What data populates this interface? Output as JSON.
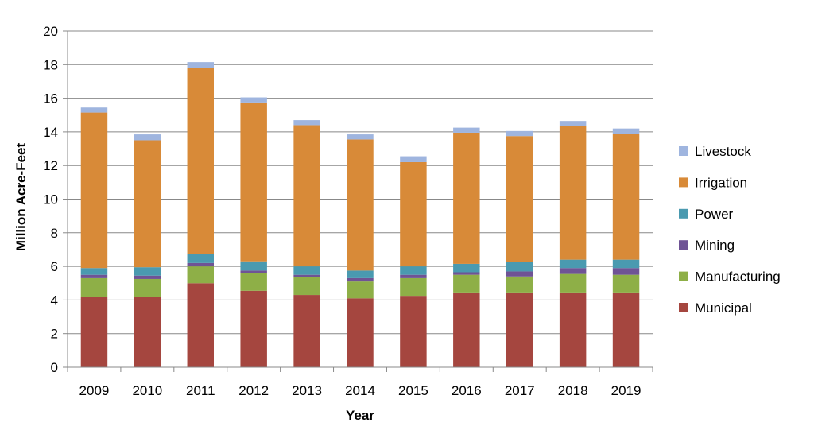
{
  "chart_data": {
    "type": "bar",
    "stacked": true,
    "title": "",
    "xlabel": "Year",
    "ylabel": "Million Acre-Feet",
    "ylim": [
      0,
      20
    ],
    "yticks": [
      "0",
      "2",
      "4",
      "6",
      "8",
      "10",
      "12",
      "14",
      "16",
      "18",
      "20"
    ],
    "grid": "horizontal",
    "legend_position": "right",
    "categories": [
      "2009",
      "2010",
      "2011",
      "2012",
      "2013",
      "2014",
      "2015",
      "2016",
      "2017",
      "2018",
      "2019"
    ],
    "series": [
      {
        "name": "Municipal",
        "color": "#a5463f",
        "values": [
          4.2,
          4.2,
          5.0,
          4.55,
          4.3,
          4.1,
          4.25,
          4.45,
          4.45,
          4.45,
          4.45
        ]
      },
      {
        "name": "Manufacturing",
        "color": "#8eaf47",
        "values": [
          1.1,
          1.05,
          1.0,
          1.05,
          1.05,
          1.0,
          1.05,
          1.05,
          0.95,
          1.1,
          1.05
        ]
      },
      {
        "name": "Mining",
        "color": "#6f5395",
        "values": [
          0.2,
          0.2,
          0.2,
          0.15,
          0.15,
          0.2,
          0.2,
          0.15,
          0.3,
          0.35,
          0.4
        ]
      },
      {
        "name": "Power",
        "color": "#4a9ab0",
        "values": [
          0.4,
          0.5,
          0.55,
          0.55,
          0.5,
          0.45,
          0.5,
          0.5,
          0.55,
          0.5,
          0.5
        ]
      },
      {
        "name": "Irrigation",
        "color": "#d88a38",
        "values": [
          9.25,
          7.55,
          11.05,
          9.45,
          8.4,
          7.8,
          6.2,
          7.8,
          7.5,
          7.95,
          7.5
        ]
      },
      {
        "name": "Livestock",
        "color": "#9fb5df",
        "values": [
          0.3,
          0.35,
          0.35,
          0.3,
          0.3,
          0.3,
          0.35,
          0.3,
          0.3,
          0.3,
          0.3
        ]
      }
    ]
  }
}
